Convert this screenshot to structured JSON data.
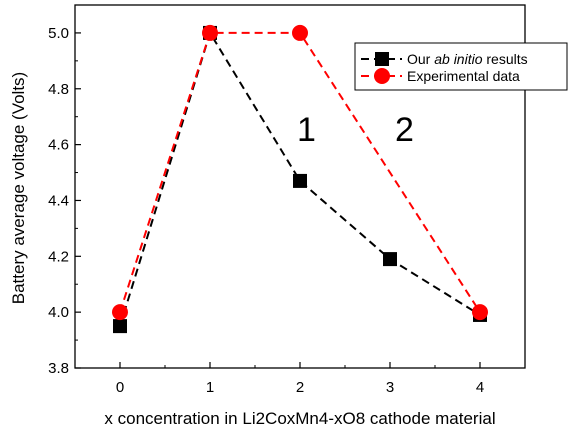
{
  "chart_data": {
    "type": "line",
    "title": "",
    "xlabel": "x concentration in Li2CoxMn4-xO8 cathode material",
    "ylabel": "Battery average voltage (Volts)",
    "x": [
      0,
      1,
      2,
      3,
      4
    ],
    "x_ticks": [
      "0",
      "1",
      "2",
      "3",
      "4"
    ],
    "xlim": [
      -0.5,
      4.5
    ],
    "ylim": [
      3.8,
      5.1
    ],
    "y_ticks": [
      "3.8",
      "4.0",
      "4.2",
      "4.4",
      "4.6",
      "4.8",
      "5.0"
    ],
    "grid": false,
    "legend_position": "top-right",
    "series": [
      {
        "name_parts": [
          "Our ",
          "ab initio",
          " results"
        ],
        "marker": "square",
        "color": "#000000",
        "line_style": "dashed",
        "values": [
          3.95,
          5.0,
          4.47,
          4.19,
          3.99
        ]
      },
      {
        "name": "Experimental data",
        "marker": "circle",
        "color": "#ff0000",
        "line_style": "dashed",
        "values": [
          4.0,
          5.0,
          5.0,
          null,
          4.0
        ]
      }
    ],
    "annotations": [
      "1",
      "2"
    ]
  }
}
